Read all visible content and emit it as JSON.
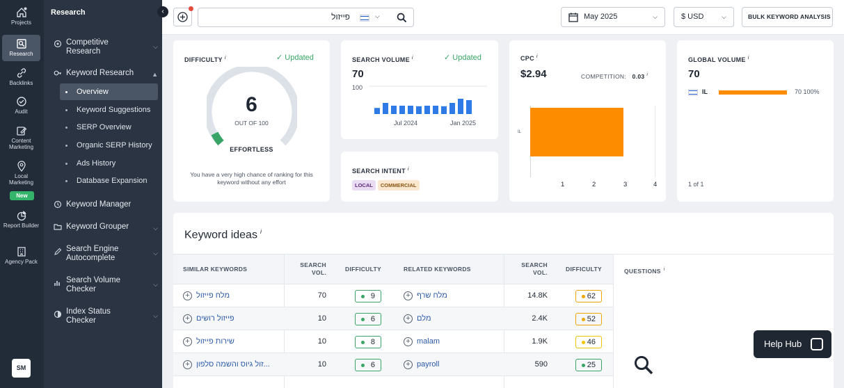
{
  "rail": {
    "items": [
      {
        "label": "Projects",
        "icon": "home-icon"
      },
      {
        "label": "Research",
        "icon": "research-icon"
      },
      {
        "label": "Backlinks",
        "icon": "link-icon"
      },
      {
        "label": "Audit",
        "icon": "audit-icon"
      },
      {
        "label": "Content Marketing",
        "icon": "edit-icon"
      },
      {
        "label": "Local Marketing",
        "icon": "pin-icon"
      },
      {
        "label": "Report Builder",
        "icon": "report-icon"
      },
      {
        "label": "Agency Pack",
        "icon": "building-icon"
      }
    ],
    "new_badge": "New",
    "avatar": "SM"
  },
  "nav": {
    "title": "Research",
    "groups": [
      {
        "label": "Competitive Research"
      },
      {
        "label": "Keyword Research"
      },
      {
        "label": "Keyword Manager"
      },
      {
        "label": "Keyword Grouper"
      },
      {
        "label": "Search Engine Autocomplete"
      },
      {
        "label": "Search Volume Checker"
      },
      {
        "label": "Index Status Checker"
      }
    ],
    "sub_items": [
      {
        "label": "Overview"
      },
      {
        "label": "Keyword Suggestions"
      },
      {
        "label": "SERP Overview"
      },
      {
        "label": "Organic SERP History"
      },
      {
        "label": "Ads History"
      },
      {
        "label": "Database Expansion"
      }
    ]
  },
  "topbar": {
    "search_value": "פייזול",
    "date": "May 2025",
    "currency": "$ USD",
    "bulk_button": "BULK KEYWORD ANALYSIS"
  },
  "difficulty": {
    "label": "DIFFICULTY",
    "info": "i",
    "updated": "Updated",
    "value": "6",
    "out_of": "OUT OF 100",
    "level": "EFFORTLESS",
    "description": "You have a very high chance of ranking for this keyword without any effort"
  },
  "search_volume": {
    "label": "SEARCH VOLUME",
    "info": "i",
    "updated": "Updated",
    "value": "70",
    "axis_max": "100",
    "tick_1": "Jul 2024",
    "tick_2": "Jan 2025"
  },
  "search_intent": {
    "label": "SEARCH INTENT",
    "info": "i",
    "tags": [
      "LOCAL",
      "COMMERCIAL"
    ]
  },
  "cpc": {
    "label": "CPC",
    "info": "i",
    "value": "$2.94",
    "competition_label": "COMPETITION:",
    "competition_value": "0.03",
    "bar_label": "IL",
    "bar_color": "#fe8c00",
    "x_ticks": [
      "1",
      "2",
      "3",
      "4"
    ]
  },
  "global_volume": {
    "label": "GLOBAL VOLUME",
    "info": "i",
    "value": "70",
    "country": "IL",
    "country_value": "70",
    "country_percent": "100%",
    "share": 1.0,
    "bar_color": "#fe8c00",
    "pagination": "1 of 1"
  },
  "keyword_ideas": {
    "title": "Keyword ideas",
    "info": "i",
    "similar_header": "SIMILAR KEYWORDS",
    "related_header": "RELATED KEYWORDS",
    "vol_header_1": "SEARCH",
    "vol_header_2": "VOL.",
    "diff_header": "DIFFICULTY",
    "questions_header": "QUESTIONS",
    "rows": [
      {
        "similar": "מלח פייזול",
        "similar_vol": "70",
        "similar_diff": "9",
        "related": "מלח שרף",
        "related_vol": "14.8K",
        "related_diff": "62"
      },
      {
        "similar": "פייזול רושים",
        "similar_vol": "10",
        "similar_diff": "6",
        "related": "מלם",
        "related_vol": "2.4K",
        "related_diff": "52"
      },
      {
        "similar": "שירות פייזול",
        "similar_vol": "10",
        "similar_diff": "8",
        "related": "malam",
        "related_vol": "1.9K",
        "related_diff": "46"
      },
      {
        "similar": "...זול גיוס והשמה סלפון",
        "similar_vol": "10",
        "similar_diff": "6",
        "related": "payroll",
        "related_vol": "590",
        "related_diff": "25"
      }
    ]
  },
  "colors": {
    "easy": "#38a566",
    "medium": "#f0a500",
    "hard": "#f5c400",
    "bar": "#2e7be6"
  },
  "chart_data": {
    "type": "bar",
    "title": "SEARCH VOLUME",
    "categories": [
      "",
      "",
      "",
      "",
      "",
      "",
      "",
      "",
      "",
      "",
      "",
      ""
    ],
    "values": [
      22,
      40,
      30,
      30,
      30,
      28,
      30,
      30,
      28,
      40,
      55,
      50
    ],
    "ylim": [
      0,
      100
    ],
    "x_tick_labels": [
      "Jul 2024",
      "Jan 2025"
    ],
    "xlabel": "",
    "ylabel": ""
  }
}
